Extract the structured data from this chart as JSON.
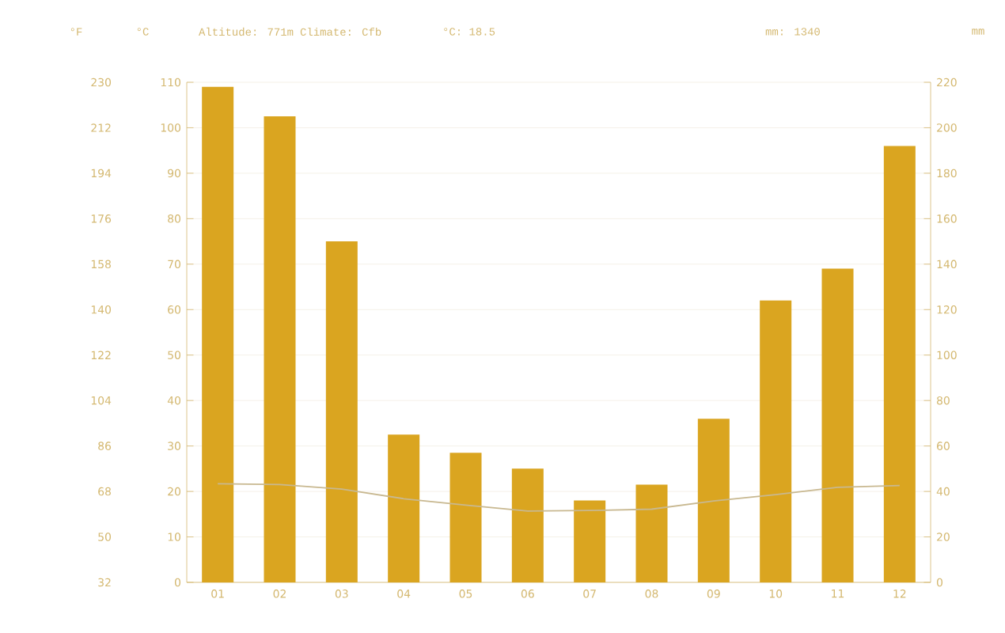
{
  "chart_data": {
    "type": "bar",
    "annotations": [
      "Altitude: 771m",
      "Climate: Cfb",
      "°C: 18.5",
      "mm: 1340"
    ],
    "ylabel": "°C",
    "y2label": "mm",
    "y3label": "°F",
    "categories": [
      "01",
      "02",
      "03",
      "04",
      "05",
      "06",
      "07",
      "08",
      "09",
      "10",
      "11",
      "12"
    ],
    "series": [
      {
        "axis": "y2",
        "color": "#daa520",
        "values": [
          218,
          205,
          150,
          65,
          57,
          50,
          36,
          43,
          72,
          124,
          138,
          192
        ]
      },
      {
        "type": "line",
        "axis": "y",
        "color": "#c8b890",
        "values": [
          21.7,
          21.5,
          20.5,
          18.4,
          17,
          15.7,
          15.8,
          16.1,
          17.9,
          19.3,
          20.9,
          21.3
        ]
      }
    ],
    "ylim": [
      0,
      110
    ],
    "yticks": [
      0,
      10,
      20,
      30,
      40,
      50,
      60,
      70,
      80,
      90,
      100,
      110
    ],
    "y2lim": [
      0,
      220
    ],
    "y2ticks": [
      0,
      20,
      40,
      60,
      80,
      100,
      120,
      140,
      160,
      180,
      200,
      220
    ],
    "y3lim": [
      32,
      230
    ],
    "y3ticks": [
      32,
      50,
      68,
      86,
      104,
      122,
      140,
      158,
      176,
      194,
      212,
      230
    ],
    "grid": "y"
  }
}
